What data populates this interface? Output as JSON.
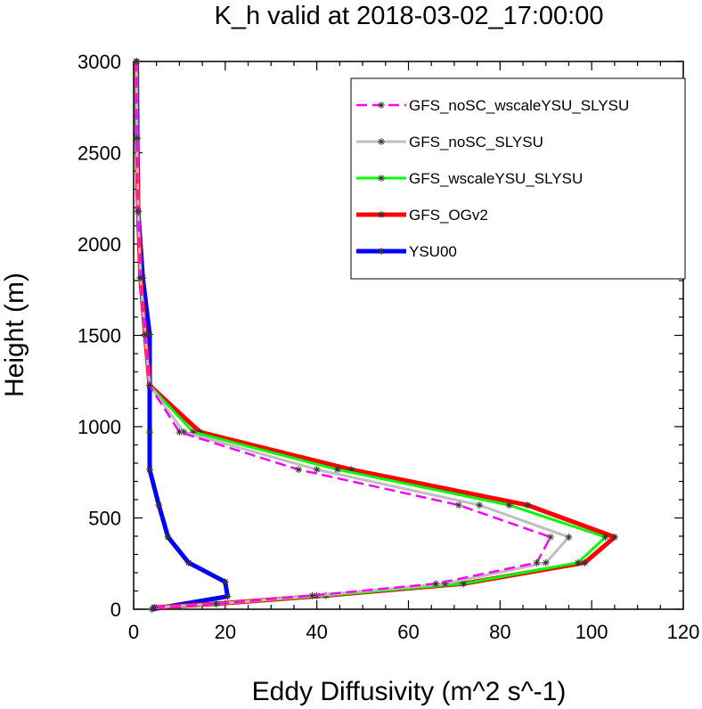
{
  "chart_data": {
    "type": "line",
    "title": "K_h valid at 2018-03-02_17:00:00",
    "xlabel": "Eddy Diffusivity (m^2 s^-1)",
    "ylabel": "Height (m)",
    "xlim": [
      0,
      120
    ],
    "ylim": [
      0,
      3000
    ],
    "xticks": [
      0,
      20,
      40,
      60,
      80,
      100,
      120
    ],
    "yticks": [
      0,
      500,
      1000,
      1500,
      2000,
      2500,
      3000
    ],
    "legend_position": "top-right",
    "grid": false,
    "series": [
      {
        "name": "GFS_noSC_wscaleYSU_SLYSU",
        "color": "#ff00ff",
        "dashed": true,
        "line_width": 2.5,
        "points": [
          [
            4.5,
            10
          ],
          [
            18,
            30
          ],
          [
            39,
            75
          ],
          [
            66,
            140
          ],
          [
            88,
            255
          ],
          [
            91,
            395
          ],
          [
            71,
            570
          ],
          [
            36,
            765
          ],
          [
            10,
            970
          ],
          [
            3.5,
            1225
          ],
          [
            2.5,
            1505
          ],
          [
            1.5,
            1815
          ],
          [
            1,
            2180
          ],
          [
            0.7,
            2580
          ],
          [
            0.6,
            3000
          ]
        ]
      },
      {
        "name": "GFS_noSC_SLYSU",
        "color": "#bebebe",
        "dashed": false,
        "line_width": 3,
        "points": [
          [
            4.5,
            10
          ],
          [
            18,
            30
          ],
          [
            40,
            75
          ],
          [
            68,
            140
          ],
          [
            90,
            255
          ],
          [
            95,
            395
          ],
          [
            75.5,
            570
          ],
          [
            40,
            765
          ],
          [
            11,
            970
          ],
          [
            3.5,
            1225
          ],
          [
            2.5,
            1505
          ],
          [
            1.5,
            1815
          ],
          [
            1,
            2180
          ],
          [
            0.7,
            2580
          ],
          [
            0.6,
            3000
          ]
        ]
      },
      {
        "name": "GFS_wscaleYSU_SLYSU",
        "color": "#00ff00",
        "dashed": false,
        "line_width": 3,
        "points": [
          [
            4.5,
            10
          ],
          [
            18,
            30
          ],
          [
            42,
            75
          ],
          [
            72,
            140
          ],
          [
            97,
            255
          ],
          [
            103,
            395
          ],
          [
            82,
            570
          ],
          [
            44.5,
            765
          ],
          [
            13,
            970
          ],
          [
            3.5,
            1225
          ],
          [
            2.5,
            1505
          ],
          [
            1.5,
            1815
          ],
          [
            1,
            2180
          ],
          [
            0.7,
            2580
          ],
          [
            0.6,
            3000
          ]
        ]
      },
      {
        "name": "GFS_OGv2",
        "color": "#ff0000",
        "dashed": false,
        "line_width": 5,
        "points": [
          [
            4.5,
            10
          ],
          [
            18,
            30
          ],
          [
            42,
            75
          ],
          [
            72,
            140
          ],
          [
            98.5,
            255
          ],
          [
            105,
            395
          ],
          [
            86,
            570
          ],
          [
            47.5,
            765
          ],
          [
            14.5,
            970
          ],
          [
            3.5,
            1225
          ],
          [
            2.5,
            1505
          ],
          [
            1.5,
            1815
          ],
          [
            1,
            2180
          ],
          [
            0.7,
            2580
          ],
          [
            0.6,
            3000
          ]
        ]
      },
      {
        "name": "YSU00",
        "color": "#0000ff",
        "dashed": false,
        "line_width": 5,
        "points": [
          [
            4,
            0
          ],
          [
            20.5,
            70
          ],
          [
            20,
            150
          ],
          [
            12,
            255
          ],
          [
            7.5,
            395
          ],
          [
            5.5,
            570
          ],
          [
            3.5,
            765
          ],
          [
            3.5,
            970
          ],
          [
            3.5,
            1225
          ],
          [
            3.5,
            1505
          ],
          [
            2,
            1815
          ],
          [
            1,
            2180
          ],
          [
            0.8,
            2580
          ],
          [
            0.7,
            3000
          ]
        ]
      }
    ]
  }
}
